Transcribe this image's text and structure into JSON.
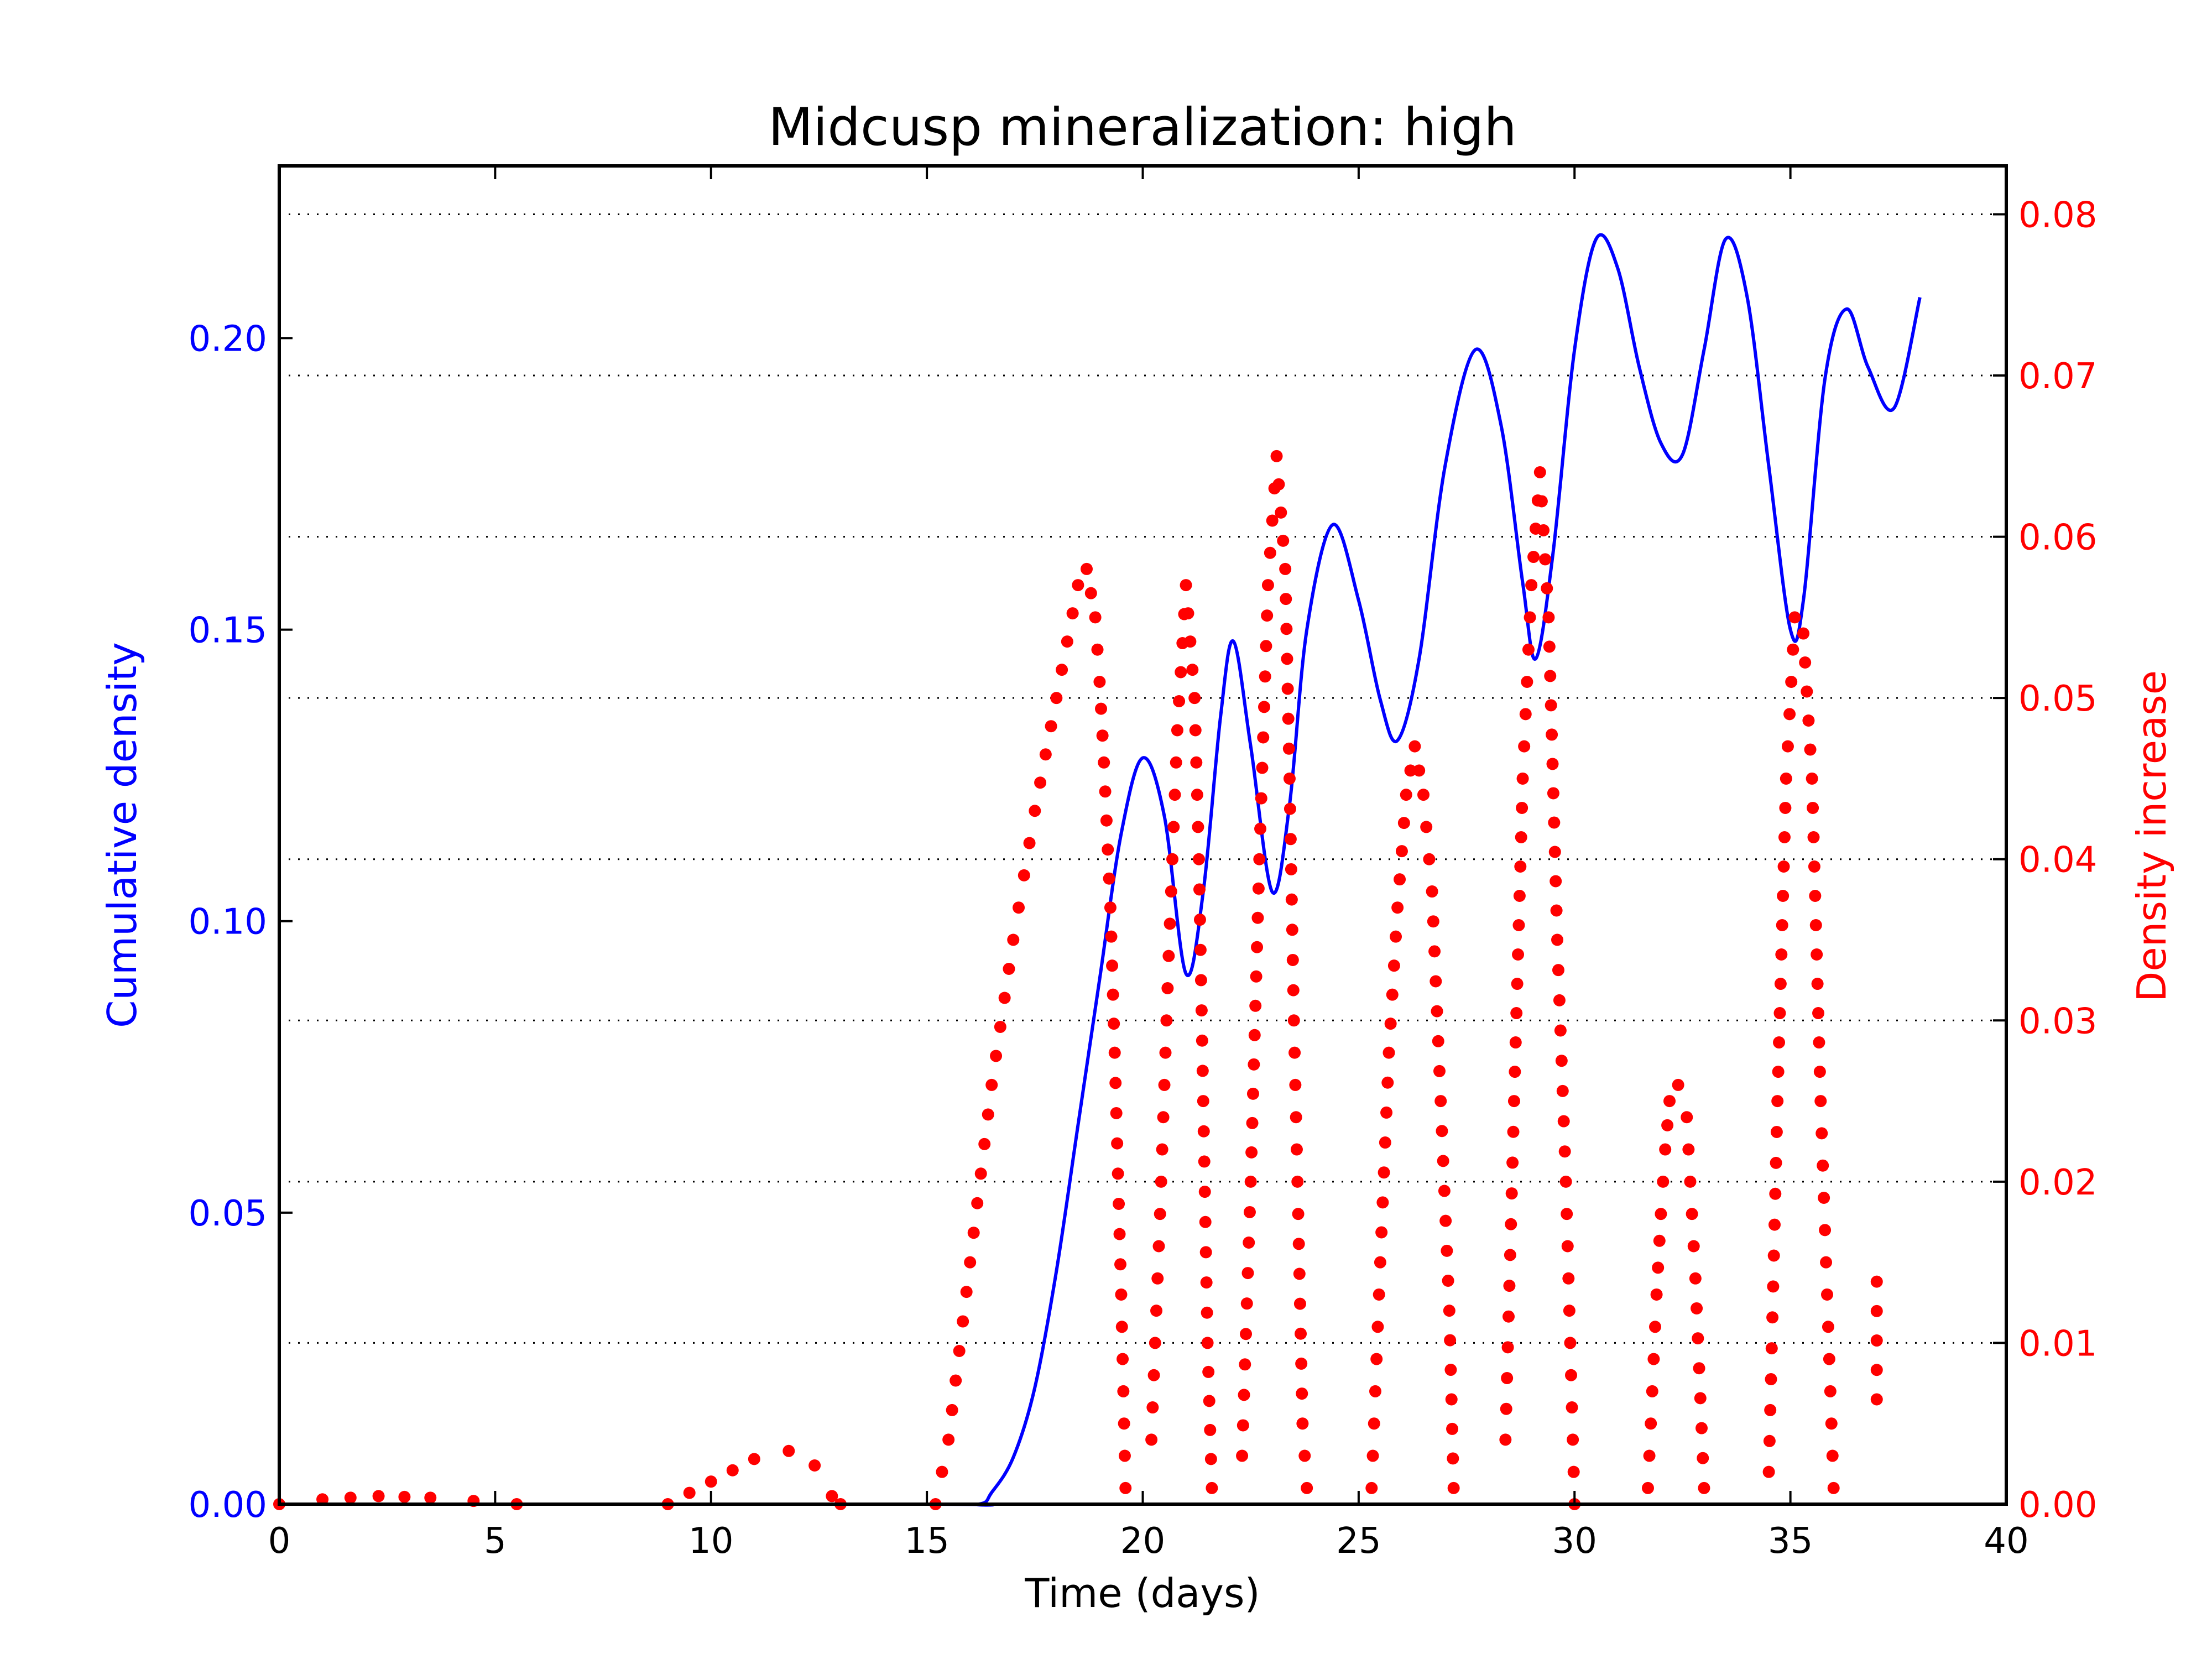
{
  "chart_data": {
    "type": "line",
    "title": "Midcusp mineralization: high",
    "xlabel": "Time (days)",
    "ylabel_left": "Cumulative density",
    "ylabel_right": "Density increase",
    "xlim": [
      0,
      40
    ],
    "ylim_left": [
      0,
      0.22954
    ],
    "ylim_right": [
      0,
      0.083
    ],
    "x_ticks": [
      "0",
      "5",
      "10",
      "15",
      "20",
      "25",
      "30",
      "35",
      "40"
    ],
    "y_left_ticks": [
      "0.00",
      "0.05",
      "0.10",
      "0.15",
      "0.20"
    ],
    "y_right_ticks": [
      "0.00",
      "0.01",
      "0.02",
      "0.03",
      "0.04",
      "0.05",
      "0.06",
      "0.07",
      "0.08"
    ],
    "grid": "horizontal dotted at right-axis ticks",
    "colors": {
      "left_axis": "#0000ff",
      "right_axis": "#ff0000",
      "grid": "#000000"
    },
    "series": [
      {
        "axis": "left",
        "style": "line",
        "color": "#0000ff",
        "points": [
          [
            0,
            0
          ],
          [
            15.0,
            0
          ],
          [
            16.2,
            0.0
          ],
          [
            16.5,
            0.002
          ],
          [
            17.0,
            0.008
          ],
          [
            17.5,
            0.02
          ],
          [
            18.0,
            0.04
          ],
          [
            18.5,
            0.065
          ],
          [
            19.0,
            0.09
          ],
          [
            19.5,
            0.115
          ],
          [
            20.0,
            0.128
          ],
          [
            20.5,
            0.118
          ],
          [
            21.0,
            0.091
          ],
          [
            21.4,
            0.105
          ],
          [
            21.8,
            0.135
          ],
          [
            22.1,
            0.148
          ],
          [
            22.5,
            0.13
          ],
          [
            23.0,
            0.105
          ],
          [
            23.4,
            0.12
          ],
          [
            23.8,
            0.15
          ],
          [
            24.4,
            0.168
          ],
          [
            25.0,
            0.155
          ],
          [
            25.5,
            0.138
          ],
          [
            25.9,
            0.131
          ],
          [
            26.4,
            0.145
          ],
          [
            27.0,
            0.178
          ],
          [
            27.7,
            0.198
          ],
          [
            28.3,
            0.185
          ],
          [
            28.8,
            0.158
          ],
          [
            29.1,
            0.145
          ],
          [
            29.5,
            0.163
          ],
          [
            30.0,
            0.198
          ],
          [
            30.5,
            0.217
          ],
          [
            31.0,
            0.212
          ],
          [
            31.5,
            0.195
          ],
          [
            32.0,
            0.182
          ],
          [
            32.5,
            0.18
          ],
          [
            33.0,
            0.198
          ],
          [
            33.5,
            0.217
          ],
          [
            34.0,
            0.207
          ],
          [
            34.5,
            0.178
          ],
          [
            35.0,
            0.15
          ],
          [
            35.3,
            0.155
          ],
          [
            35.8,
            0.193
          ],
          [
            36.3,
            0.205
          ],
          [
            36.8,
            0.195
          ],
          [
            37.4,
            0.188
          ],
          [
            38.0,
            0.207
          ]
        ]
      },
      {
        "axis": "right",
        "style": "points",
        "color": "#ff0000",
        "segments": [
          [
            [
              0,
              0
            ],
            [
              1.0,
              0.0003
            ],
            [
              2.3,
              0.0005
            ],
            [
              3.5,
              0.0004
            ],
            [
              4.5,
              0.0002
            ],
            [
              5.5,
              0
            ]
          ],
          [
            [
              9.0,
              0
            ],
            [
              10.0,
              0.0014
            ],
            [
              11.0,
              0.0028
            ],
            [
              11.8,
              0.0033
            ],
            [
              12.4,
              0.0024
            ],
            [
              12.8,
              0.0005
            ],
            [
              13.0,
              0
            ]
          ],
          [
            [
              15.2,
              0
            ],
            [
              15.5,
              0.004
            ],
            [
              16.0,
              0.015
            ],
            [
              16.5,
              0.026
            ],
            [
              17.0,
              0.035
            ],
            [
              17.5,
              0.043
            ],
            [
              18.0,
              0.05
            ],
            [
              18.5,
              0.057
            ],
            [
              18.7,
              0.058
            ],
            [
              18.9,
              0.055
            ],
            [
              19.0,
              0.051
            ],
            [
              19.1,
              0.046
            ],
            [
              19.25,
              0.037
            ],
            [
              19.35,
              0.028
            ],
            [
              19.5,
              0.013
            ],
            [
              19.6,
              0.001
            ]
          ],
          [
            [
              20.2,
              0.004
            ],
            [
              20.4,
              0.018
            ],
            [
              20.6,
              0.034
            ],
            [
              20.8,
              0.048
            ],
            [
              21.0,
              0.057
            ],
            [
              21.2,
              0.05
            ],
            [
              21.3,
              0.04
            ],
            [
              21.4,
              0.025
            ],
            [
              21.5,
              0.01
            ],
            [
              21.6,
              0.001
            ]
          ],
          [
            [
              22.3,
              0.003
            ],
            [
              22.5,
              0.02
            ],
            [
              22.7,
              0.04
            ],
            [
              22.9,
              0.057
            ],
            [
              23.1,
              0.065
            ],
            [
              23.3,
              0.058
            ],
            [
              23.4,
              0.045
            ],
            [
              23.5,
              0.03
            ],
            [
              23.6,
              0.018
            ],
            [
              23.7,
              0.005
            ],
            [
              23.8,
              0.001
            ]
          ],
          [
            [
              25.3,
              0.001
            ],
            [
              25.5,
              0.015
            ],
            [
              25.7,
              0.028
            ],
            [
              25.9,
              0.037
            ],
            [
              26.1,
              0.044
            ],
            [
              26.3,
              0.047
            ],
            [
              26.5,
              0.044
            ],
            [
              26.7,
              0.038
            ],
            [
              26.9,
              0.025
            ],
            [
              27.1,
              0.012
            ],
            [
              27.2,
              0.001
            ]
          ],
          [
            [
              28.4,
              0.004
            ],
            [
              28.6,
              0.025
            ],
            [
              28.8,
              0.045
            ],
            [
              29.0,
              0.057
            ],
            [
              29.2,
              0.064
            ],
            [
              29.4,
              0.055
            ],
            [
              29.6,
              0.035
            ],
            [
              29.8,
              0.02
            ],
            [
              29.9,
              0.01
            ],
            [
              30.0,
              0
            ]
          ],
          [
            [
              31.7,
              0.001
            ],
            [
              31.8,
              0.007
            ],
            [
              31.9,
              0.013
            ],
            [
              32.0,
              0.018
            ],
            [
              32.1,
              0.022
            ],
            [
              32.2,
              0.025
            ],
            [
              32.4,
              0.026
            ],
            [
              32.6,
              0.024
            ],
            [
              32.8,
              0.014
            ],
            [
              33.0,
              0.001
            ]
          ],
          [
            [
              34.5,
              0.002
            ],
            [
              34.7,
              0.025
            ],
            [
              34.9,
              0.045
            ],
            [
              35.1,
              0.055
            ],
            [
              35.3,
              0.054
            ],
            [
              35.5,
              0.045
            ],
            [
              35.7,
              0.025
            ],
            [
              35.9,
              0.009
            ],
            [
              36.0,
              0.001
            ]
          ],
          [
            [
              37.0,
              0.0065
            ],
            [
              37.0,
              0.0138
            ]
          ]
        ]
      }
    ]
  }
}
